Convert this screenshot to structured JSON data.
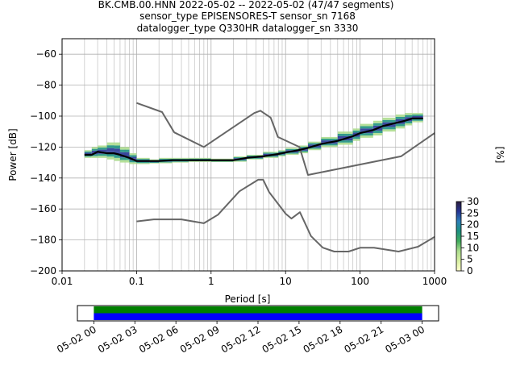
{
  "header": {
    "line1": "BK.CMB.00.HNN   2022-05-02 -- 2022-05-02  (47/47 segments)",
    "line2": "sensor_type EPISENSORES-T sensor_sn 7168",
    "line3": "datalogger_type Q330HR datalogger_sn 3330"
  },
  "chart_data": [
    {
      "type": "line",
      "title": "",
      "xlabel": "Period [s]",
      "ylabel": "Power [dB]",
      "xscale": "log",
      "xlim": [
        0.01,
        1000
      ],
      "ylim": [
        -200,
        -50
      ],
      "grid": true,
      "x_ticks": [
        {
          "value": 0.01,
          "label": "0.01"
        },
        {
          "value": 0.1,
          "label": "0.1"
        },
        {
          "value": 1,
          "label": "1"
        },
        {
          "value": 10,
          "label": "10"
        },
        {
          "value": 100,
          "label": "100"
        },
        {
          "value": 1000,
          "label": "1000"
        }
      ],
      "y_ticks": [
        {
          "value": -60,
          "label": "−60"
        },
        {
          "value": -80,
          "label": "−80"
        },
        {
          "value": -100,
          "label": "−100"
        },
        {
          "value": -120,
          "label": "−120"
        },
        {
          "value": -140,
          "label": "−140"
        },
        {
          "value": -160,
          "label": "−160"
        },
        {
          "value": -180,
          "label": "−180"
        },
        {
          "value": -200,
          "label": "−200"
        }
      ],
      "series": [
        {
          "role": "high-noise-model",
          "color": "#666666",
          "x": [
            0.1,
            0.22,
            0.32,
            0.8,
            3.8,
            4.6,
            6.3,
            7.9,
            15.4,
            20,
            354.8,
            1000
          ],
          "y": [
            -91.5,
            -97.4,
            -110.5,
            -120,
            -98,
            -96.5,
            -101,
            -113.5,
            -120,
            -138,
            -126,
            -111
          ]
        },
        {
          "role": "low-noise-model",
          "color": "#666666",
          "x": [
            0.1,
            0.17,
            0.4,
            0.8,
            1.24,
            2.4,
            4.3,
            5.0,
            6.0,
            10,
            12,
            15.6,
            21.9,
            31.6,
            45,
            70,
            101,
            154,
            328,
            600,
            1000
          ],
          "y": [
            -168,
            -166.7,
            -166.7,
            -169.2,
            -163.7,
            -148.6,
            -141.1,
            -141.1,
            -149,
            -163,
            -166.2,
            -162.1,
            -177.5,
            -185,
            -187.5,
            -187.5,
            -185,
            -185,
            -187.5,
            -184.4,
            -178
          ]
        },
        {
          "role": "mode",
          "color": "#000000",
          "x": [
            0.02,
            0.025,
            0.03,
            0.04,
            0.05,
            0.06,
            0.08,
            0.1,
            0.15,
            0.2,
            0.3,
            0.5,
            1,
            2,
            3,
            5,
            8,
            10,
            15,
            20,
            30,
            50,
            80,
            100,
            150,
            200,
            300,
            400,
            500,
            700
          ],
          "y": [
            -125,
            -125,
            -123,
            -124,
            -124,
            -125,
            -127,
            -129,
            -129,
            -129,
            -128.5,
            -128.5,
            -128.5,
            -128.5,
            -127,
            -126,
            -124.5,
            -123.5,
            -122,
            -120.5,
            -118,
            -116,
            -113,
            -111,
            -109,
            -106.5,
            -104.5,
            -103,
            -101.5,
            -101.5
          ]
        }
      ],
      "probability_density": {
        "colormap": "viridis_r-like",
        "x": [
          0.02,
          0.025,
          0.03,
          0.04,
          0.05,
          0.06,
          0.08,
          0.1,
          0.15,
          0.2,
          0.3,
          0.5,
          1,
          2,
          3,
          5,
          8,
          10,
          15,
          20,
          30,
          50,
          80,
          100,
          150,
          200,
          300,
          400,
          500,
          700
        ],
        "y_upper": [
          -122,
          -122,
          -120,
          -119,
          -117,
          -120,
          -124,
          -127,
          -128,
          -128,
          -127,
          -127,
          -127.5,
          -127.5,
          -126,
          -125,
          -123,
          -122,
          -120.5,
          -119,
          -116.5,
          -113.5,
          -110,
          -108,
          -105,
          -103,
          -101,
          -99,
          -98,
          -98
        ],
        "y_lower": [
          -127,
          -127,
          -126,
          -127,
          -128,
          -129,
          -130,
          -131,
          -130.5,
          -130.5,
          -130,
          -129.5,
          -129.5,
          -129.5,
          -128,
          -127,
          -126,
          -125,
          -124,
          -122,
          -120,
          -118.5,
          -116,
          -114,
          -112.5,
          -110,
          -108,
          -106,
          -104,
          -104
        ]
      },
      "colorbar": {
        "label": "[%]",
        "min": 0,
        "max": 30,
        "ticks": [
          "0",
          "5",
          "10",
          "15",
          "20",
          "25",
          "30"
        ],
        "colors": [
          "#ffffcc",
          "#d9f0a3",
          "#addd8e",
          "#41ab5d",
          "#1d9180",
          "#2c7fb8",
          "#253494",
          "#2d1e3e"
        ]
      }
    },
    {
      "type": "timeline",
      "x_tick_labels": [
        "05-02 00",
        "05-02 03",
        "05-02 06",
        "05-02 09",
        "05-02 12",
        "05-02 15",
        "05-02 18",
        "05-02 21",
        "05-03 00"
      ],
      "coverage": [
        {
          "name": "",
          "color": "#008000",
          "start": 0.0,
          "end": 24.0
        },
        {
          "name": "",
          "color": "#0000ff",
          "start": 0.0,
          "end": 24.0
        }
      ],
      "x_range_hours": [
        -1.2,
        25.2
      ]
    }
  ]
}
